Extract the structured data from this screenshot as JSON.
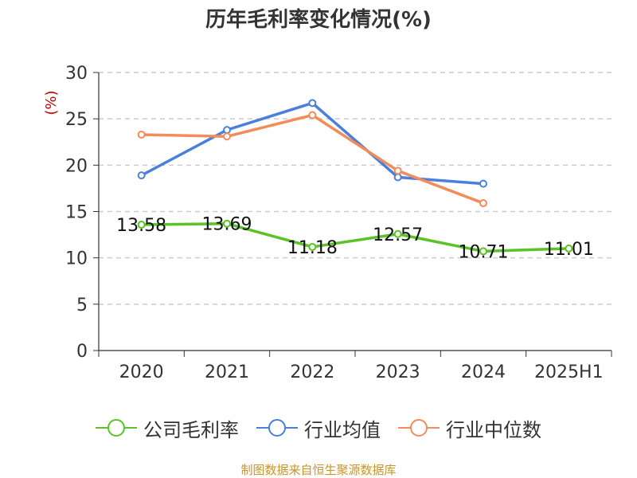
{
  "title": "历年毛利率变化情况(%)",
  "source": "制图数据来自恒生聚源数据库",
  "chart_data": {
    "type": "line",
    "title": "历年毛利率变化情况(%)",
    "ylabel": "(%)",
    "xlabel": "",
    "categories": [
      "2020",
      "2021",
      "2022",
      "2023",
      "2024",
      "2025H1"
    ],
    "ylim": [
      0,
      30
    ],
    "yticks": [
      0,
      5,
      10,
      15,
      20,
      25,
      30
    ],
    "grid": "horizontal-dashed",
    "legend_position": "bottom",
    "series": [
      {
        "name": "公司毛利率",
        "color": "#5bc228",
        "values": [
          13.58,
          13.69,
          11.18,
          12.57,
          10.71,
          11.01
        ],
        "labels": [
          "13.58",
          "13.69",
          "11.18",
          "12.57",
          "10.71",
          "11.01"
        ]
      },
      {
        "name": "行业均值",
        "color": "#4a7fdc",
        "values": [
          18.9,
          23.8,
          26.7,
          18.7,
          18.0,
          null
        ]
      },
      {
        "name": "行业中位数",
        "color": "#f28c5a",
        "values": [
          23.3,
          23.1,
          25.4,
          19.4,
          15.9,
          null
        ]
      }
    ]
  },
  "colors": {
    "ylabel": "#cc0000",
    "axis": "#333333",
    "grid": "#cccccc"
  }
}
